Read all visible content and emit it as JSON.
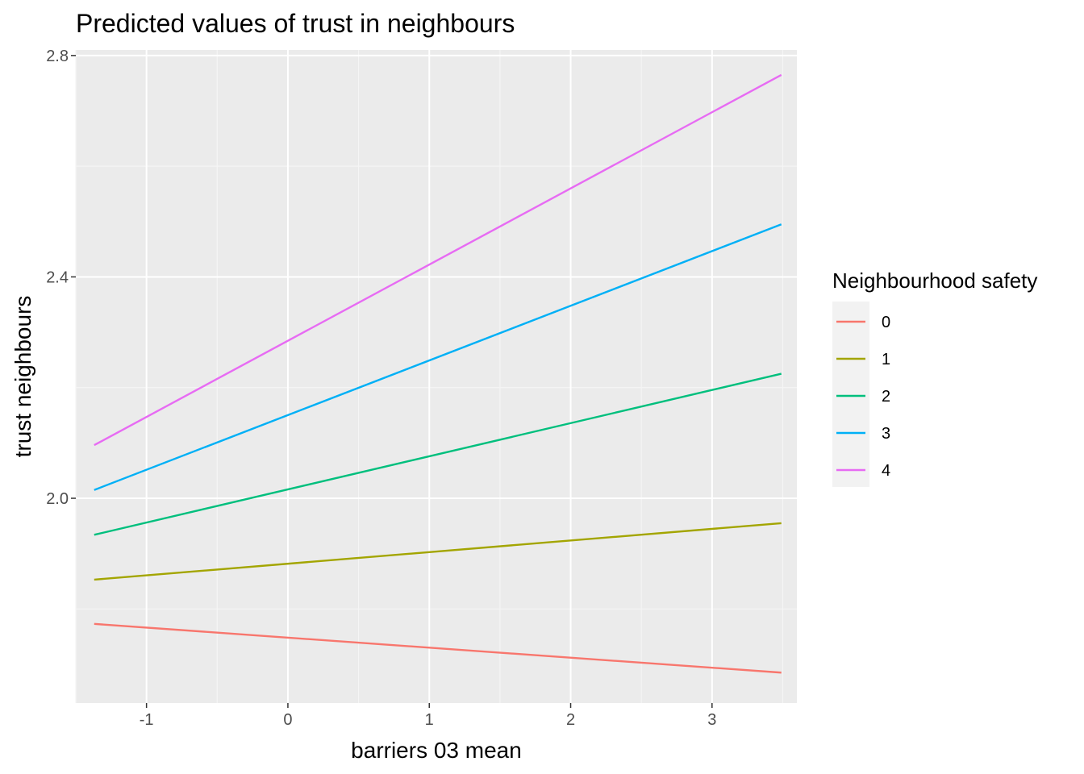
{
  "chart_data": {
    "type": "line",
    "title": "Predicted values of trust in neighbours",
    "xlabel": "barriers 03 mean",
    "ylabel": "trust neighbours",
    "xlim": [
      -1.5,
      3.6
    ],
    "ylim": [
      1.63,
      2.81
    ],
    "x_ticks": [
      -1,
      0,
      1,
      2,
      3
    ],
    "y_ticks": [
      2.0,
      2.4,
      2.8
    ],
    "y_tick_labels": [
      "2.0",
      "2.4",
      "2.8"
    ],
    "grid": true,
    "legend": {
      "title": "Neighbourhood safety",
      "placement": "right"
    },
    "series": [
      {
        "name": "0",
        "color": "#F8766D",
        "x": [
          -1.37,
          3.49
        ],
        "y": [
          1.773,
          1.685
        ]
      },
      {
        "name": "1",
        "color": "#A3A500",
        "x": [
          -1.37,
          3.49
        ],
        "y": [
          1.853,
          1.955
        ]
      },
      {
        "name": "2",
        "color": "#00BF7D",
        "x": [
          -1.37,
          3.49
        ],
        "y": [
          1.934,
          2.225
        ]
      },
      {
        "name": "3",
        "color": "#00B0F6",
        "x": [
          -1.37,
          3.49
        ],
        "y": [
          2.015,
          2.495
        ]
      },
      {
        "name": "4",
        "color": "#E76BF3",
        "x": [
          -1.37,
          3.49
        ],
        "y": [
          2.096,
          2.765
        ]
      }
    ]
  }
}
